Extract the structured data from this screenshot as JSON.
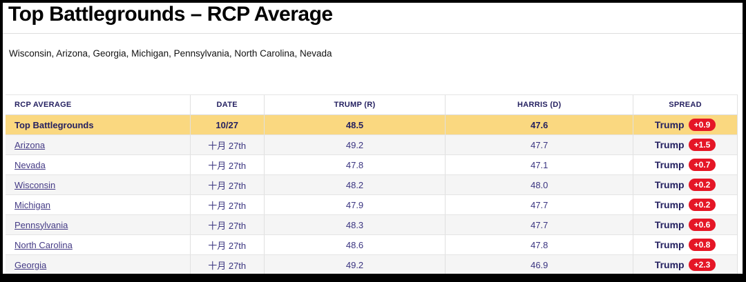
{
  "page": {
    "title": "Top Battlegrounds – RCP Average",
    "subtitle": "Wisconsin, Arizona, Georgia, Michigan, Pennsylvania, North Carolina, Nevada"
  },
  "colors": {
    "highlight_yellow": "#fad880",
    "badge_red": "#e51626",
    "header_navy": "#242060",
    "link_purple": "#443a85",
    "alt_row_gray": "#f5f5f5",
    "frame_black": "#000000"
  },
  "table": {
    "columns": [
      "RCP AVERAGE",
      "DATE",
      "TRUMP (R)",
      "HARRIS (D)",
      "SPREAD"
    ],
    "rows": [
      {
        "name": "Top Battlegrounds",
        "date": "10/27",
        "trump": "48.5",
        "harris": "47.6",
        "spread_label": "Trump",
        "spread_value": "+0.9"
      },
      {
        "name": "Arizona",
        "date": "十月 27th",
        "trump": "49.2",
        "harris": "47.7",
        "spread_label": "Trump",
        "spread_value": "+1.5"
      },
      {
        "name": "Nevada",
        "date": "十月 27th",
        "trump": "47.8",
        "harris": "47.1",
        "spread_label": "Trump",
        "spread_value": "+0.7"
      },
      {
        "name": "Wisconsin",
        "date": "十月 27th",
        "trump": "48.2",
        "harris": "48.0",
        "spread_label": "Trump",
        "spread_value": "+0.2"
      },
      {
        "name": "Michigan",
        "date": "十月 27th",
        "trump": "47.9",
        "harris": "47.7",
        "spread_label": "Trump",
        "spread_value": "+0.2"
      },
      {
        "name": "Pennsylvania",
        "date": "十月 27th",
        "trump": "48.3",
        "harris": "47.7",
        "spread_label": "Trump",
        "spread_value": "+0.6"
      },
      {
        "name": "North Carolina",
        "date": "十月 27th",
        "trump": "48.6",
        "harris": "47.8",
        "spread_label": "Trump",
        "spread_value": "+0.8"
      },
      {
        "name": "Georgia",
        "date": "十月 27th",
        "trump": "49.2",
        "harris": "46.9",
        "spread_label": "Trump",
        "spread_value": "+2.3"
      }
    ]
  }
}
